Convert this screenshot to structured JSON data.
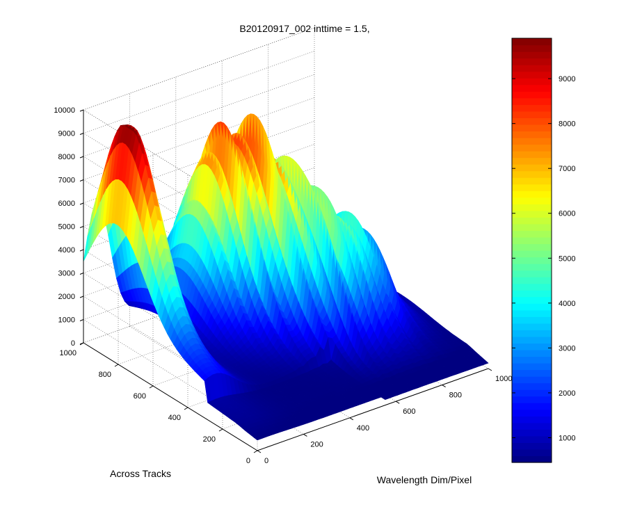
{
  "window": {},
  "chart_data": {
    "type": "surface",
    "title": "B20120917_002 inttime = 1.5,",
    "xlabel": "Wavelength Dim/Pixel",
    "ylabel": "Across Tracks",
    "zlabel": "",
    "xlim": [
      0,
      1000
    ],
    "ylim": [
      0,
      1000
    ],
    "zlim": [
      0,
      10000
    ],
    "x_ticks": [
      0,
      200,
      400,
      600,
      800,
      1000
    ],
    "y_ticks": [
      0,
      200,
      400,
      600,
      800,
      1000
    ],
    "z_ticks": [
      0,
      1000,
      2000,
      3000,
      4000,
      5000,
      6000,
      7000,
      8000,
      9000,
      10000
    ],
    "grid": true,
    "colormap": "jet",
    "colorbar": {
      "range": [
        450,
        9900
      ],
      "ticks": [
        1000,
        2000,
        3000,
        4000,
        5000,
        6000,
        7000,
        8000,
        9000
      ]
    },
    "peaks": [
      {
        "x": 60,
        "y": 820,
        "z": 9800
      },
      {
        "x": 420,
        "y": 820,
        "z": 6200
      },
      {
        "x": 560,
        "y": 720,
        "z": 4800
      },
      {
        "x": 760,
        "y": 560,
        "z": 3800
      }
    ]
  }
}
